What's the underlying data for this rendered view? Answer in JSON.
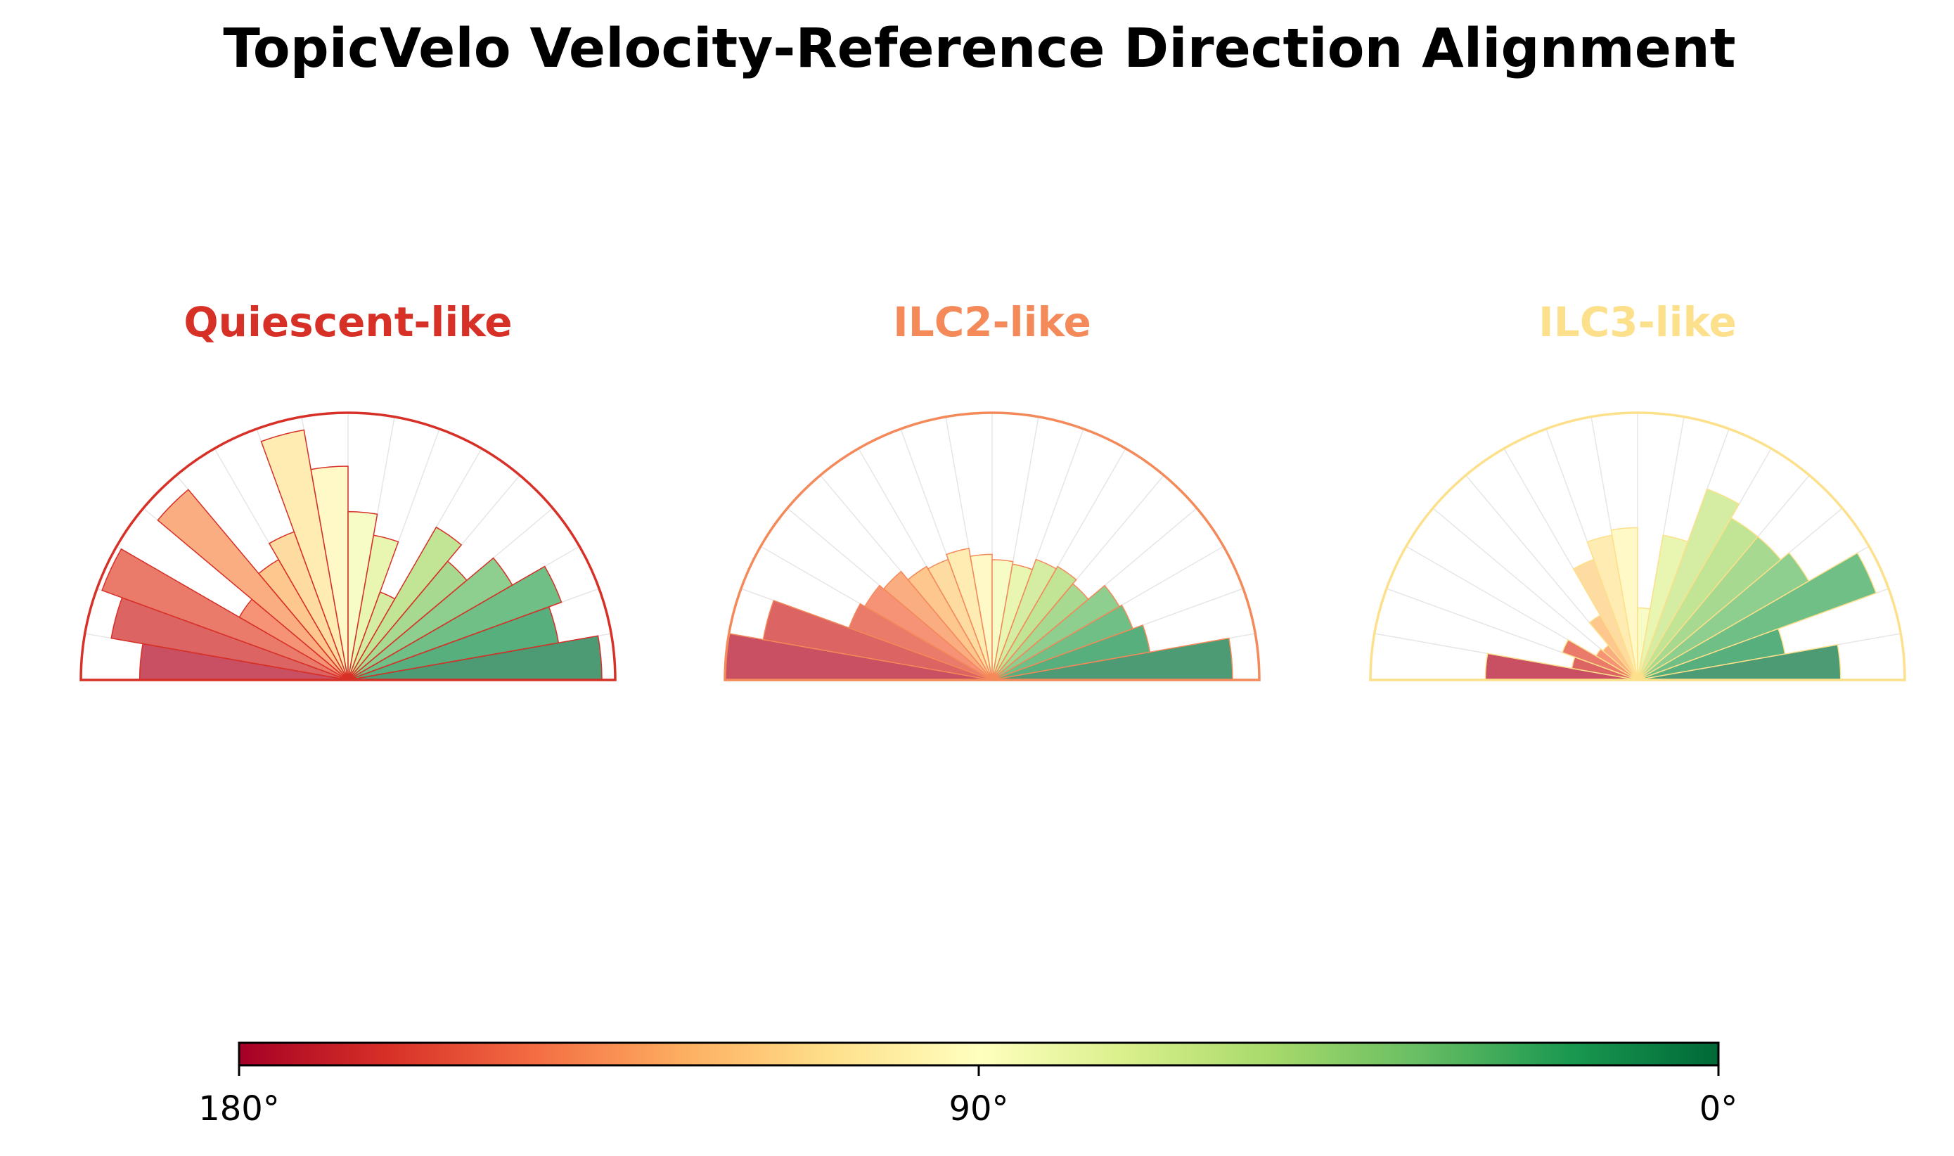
{
  "title": "TopicVelo Velocity-Reference Direction Alignment",
  "chart_data": [
    {
      "type": "polar-bar",
      "title": "Quiescent-like",
      "title_color": "#d73027",
      "angle_range_deg": [
        180,
        0
      ],
      "n_bins": 18,
      "radius_max": 1.0,
      "values": [
        0.78,
        0.9,
        0.98,
        0.47,
        0.93,
        0.52,
        0.59,
        0.95,
        0.8,
        0.63,
        0.55,
        0.35,
        0.66,
        0.58,
        0.71,
        0.85,
        0.8,
        0.95
      ]
    },
    {
      "type": "polar-bar",
      "title": "ILC2-like",
      "title_color": "#f4895a",
      "angle_range_deg": [
        180,
        0
      ],
      "n_bins": 18,
      "radius_max": 1.0,
      "values": [
        1.0,
        0.87,
        0.57,
        0.55,
        0.53,
        0.49,
        0.48,
        0.5,
        0.47,
        0.45,
        0.44,
        0.48,
        0.49,
        0.47,
        0.55,
        0.56,
        0.6,
        0.9
      ]
    },
    {
      "type": "polar-bar",
      "title": "ILC3-like",
      "title_color": "#fde08b",
      "angle_range_deg": [
        180,
        0
      ],
      "n_bins": 18,
      "radius_max": 1.0,
      "values": [
        0.57,
        0.25,
        0.3,
        0.18,
        0.17,
        0.28,
        0.48,
        0.55,
        0.57,
        0.27,
        0.55,
        0.76,
        0.7,
        0.7,
        0.74,
        0.95,
        0.56,
        0.76
      ]
    }
  ],
  "colorbar": {
    "colormap": "RdYlGn",
    "tick_labels": [
      "180°",
      "90°",
      "0°"
    ],
    "tick_values": [
      180,
      90,
      0
    ]
  }
}
